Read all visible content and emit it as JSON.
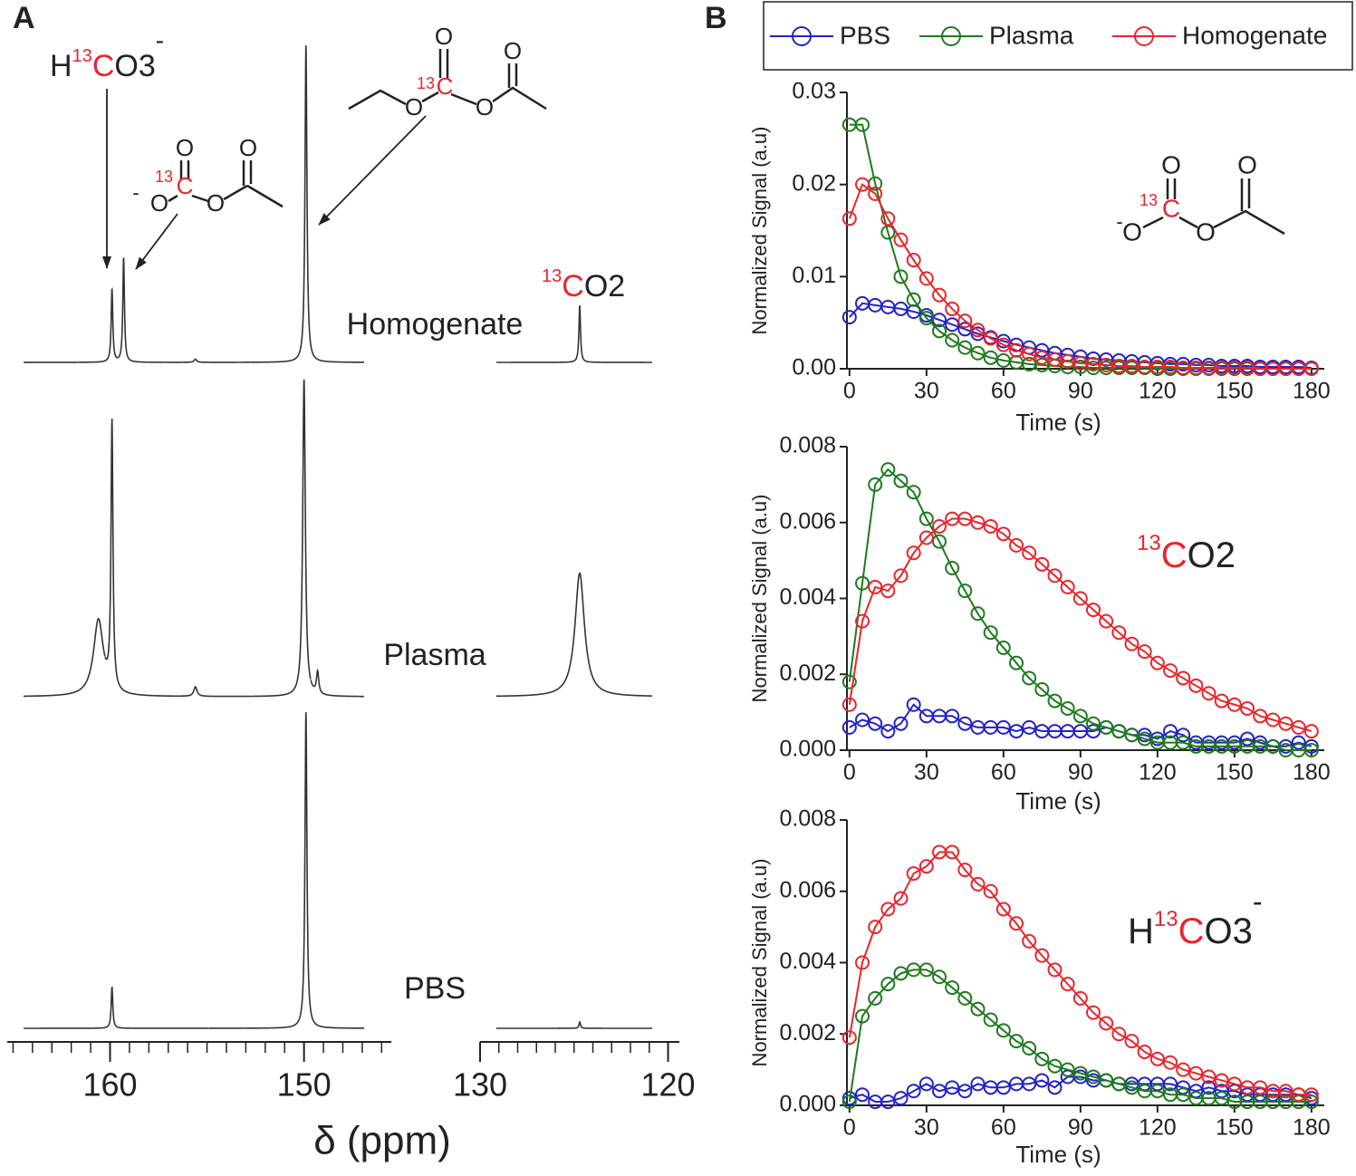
{
  "panel_labels": [
    "A",
    "B"
  ],
  "labels": {
    "bicarbonate": [
      "H",
      "13",
      "C",
      "O3",
      "-"
    ],
    "co2": [
      "13",
      "C",
      "O2"
    ],
    "acetyl_carbonate": [
      "O",
      "-",
      "O",
      "13",
      "C",
      "O",
      "O"
    ],
    "ethyl_acetyl_carbonate": [
      "O",
      "13",
      "C",
      "O",
      "O",
      "O"
    ]
  },
  "chart_data": [
    {
      "type": "spectrum",
      "xlabel": "δ (ppm)",
      "minor_tick_step": 1,
      "segments": [
        {
          "xlim": [
            165.3,
            145.5
          ],
          "xticks": [
            160,
            150
          ]
        },
        {
          "xlim": [
            130,
            119.4
          ],
          "xticks": [
            130,
            120
          ]
        }
      ],
      "spectra": [
        {
          "name": "Homogenate",
          "peaks": [
            {
              "ppm": 159.9,
              "height": 23,
              "width": 0.05
            },
            {
              "ppm": 159.3,
              "height": 33,
              "width": 0.05
            },
            {
              "ppm": 155.6,
              "height": 1,
              "width": 0.08
            },
            {
              "ppm": 149.9,
              "height": 100,
              "width": 0.06
            },
            {
              "ppm": 124.7,
              "height": 18,
              "width": 0.05
            }
          ]
        },
        {
          "name": "Plasma",
          "peaks": [
            {
              "ppm": 160.6,
              "height": 24,
              "width": 0.3
            },
            {
              "ppm": 159.9,
              "height": 84,
              "width": 0.06
            },
            {
              "ppm": 155.6,
              "height": 3,
              "width": 0.1
            },
            {
              "ppm": 150.0,
              "height": 100,
              "width": 0.08
            },
            {
              "ppm": 149.3,
              "height": 7,
              "width": 0.07
            },
            {
              "ppm": 124.7,
              "height": 39,
              "width": 0.3
            }
          ]
        },
        {
          "name": "PBS",
          "peaks": [
            {
              "ppm": 159.9,
              "height": 13,
              "width": 0.05
            },
            {
              "ppm": 149.9,
              "height": 100,
              "width": 0.06
            },
            {
              "ppm": 124.7,
              "height": 2,
              "width": 0.05
            }
          ]
        }
      ]
    },
    {
      "type": "line",
      "xlabel": "Time (s)",
      "ylabel": "Normalized Signal (a.u)",
      "xlim": [
        -1,
        185
      ],
      "xticks": [
        0,
        30,
        60,
        90,
        120,
        150,
        180
      ],
      "ylim": [
        0,
        0.03
      ],
      "yticks": [
        {
          "value": 0,
          "label": "0.00"
        },
        0.01,
        0.02,
        0.03
      ],
      "x": [
        0,
        5,
        10,
        15,
        20,
        25,
        30,
        35,
        40,
        45,
        50,
        55,
        60,
        65,
        70,
        75,
        80,
        85,
        90,
        95,
        100,
        105,
        110,
        115,
        120,
        125,
        130,
        135,
        140,
        145,
        150,
        155,
        160,
        165,
        170,
        175,
        180
      ],
      "series": [
        {
          "name": "PBS",
          "color": "#2323c8",
          "values": [
            0.0056,
            0.0071,
            0.0069,
            0.0067,
            0.0065,
            0.0062,
            0.0058,
            0.0053,
            0.0048,
            0.0043,
            0.0038,
            0.0034,
            0.003,
            0.0026,
            0.0023,
            0.002,
            0.0017,
            0.0015,
            0.0013,
            0.0011,
            0.001,
            0.0009,
            0.0008,
            0.0007,
            0.0006,
            0.0005,
            0.0005,
            0.0004,
            0.0004,
            0.0003,
            0.0003,
            0.0003,
            0.0002,
            0.0002,
            0.0002,
            0.0002,
            0.0001
          ]
        },
        {
          "name": "Plasma",
          "color": "#1e7a1e",
          "values": [
            0.0265,
            0.0265,
            0.0201,
            0.0148,
            0.01,
            0.0075,
            0.0055,
            0.0041,
            0.0031,
            0.0023,
            0.0017,
            0.0012,
            0.0009,
            0.0007,
            0.0005,
            0.0004,
            0.0003,
            0.0002,
            0.0002,
            0.0001,
            0.0001,
            0.0001,
            0.0001,
            0.0001,
            0,
            0,
            0,
            0,
            0,
            0,
            0,
            0,
            0,
            0,
            0,
            0,
            0
          ]
        },
        {
          "name": "Homogenate",
          "color": "#e8262b",
          "values": [
            0.0163,
            0.02,
            0.019,
            0.0163,
            0.014,
            0.0118,
            0.0098,
            0.008,
            0.0065,
            0.0052,
            0.0042,
            0.0033,
            0.0026,
            0.002,
            0.0016,
            0.0012,
            0.001,
            0.0008,
            0.0006,
            0.0005,
            0.0004,
            0.0003,
            0.0003,
            0.0002,
            0.0002,
            0.0002,
            0.0001,
            0.0001,
            0.0001,
            0.0001,
            0.0001,
            0.0001,
            0,
            0,
            0,
            0,
            0
          ]
        }
      ]
    },
    {
      "type": "line",
      "xlabel": "Time (s)",
      "ylabel": "Normalized Signal (a.u)",
      "xlim": [
        -1,
        185
      ],
      "xticks": [
        0,
        30,
        60,
        90,
        120,
        150,
        180
      ],
      "ylim": [
        0,
        0.008
      ],
      "yticks": [
        {
          "value": 0,
          "label": "0.000"
        },
        0.002,
        0.004,
        0.006,
        0.008
      ],
      "x": [
        0,
        5,
        10,
        15,
        20,
        25,
        30,
        35,
        40,
        45,
        50,
        55,
        60,
        65,
        70,
        75,
        80,
        85,
        90,
        95,
        100,
        105,
        110,
        115,
        120,
        125,
        130,
        135,
        140,
        145,
        150,
        155,
        160,
        165,
        170,
        175,
        180
      ],
      "series": [
        {
          "color": "#2323c8",
          "values": [
            0.0006,
            0.0008,
            0.0007,
            0.0005,
            0.0007,
            0.0012,
            0.0009,
            0.0009,
            0.0009,
            0.0007,
            0.0006,
            0.0006,
            0.0006,
            0.0005,
            0.0006,
            0.0005,
            0.0005,
            0.0005,
            0.0005,
            0.0005,
            0.0006,
            0.0005,
            0.0004,
            0.0004,
            0.0003,
            0.0005,
            0.0004,
            0.0002,
            0.0002,
            0.0002,
            0.0002,
            0.0003,
            0.0002,
            0.0001,
            0.0001,
            0.0002,
            0.0001
          ]
        },
        {
          "color": "#1e7a1e",
          "values": [
            0.0018,
            0.0044,
            0.007,
            0.0074,
            0.0071,
            0.0068,
            0.0061,
            0.0055,
            0.0048,
            0.0042,
            0.0036,
            0.0031,
            0.0027,
            0.0023,
            0.0019,
            0.0016,
            0.0013,
            0.0011,
            0.0009,
            0.0007,
            0.0006,
            0.0005,
            0.0004,
            0.0003,
            0.0002,
            0.0002,
            0.0002,
            0.0001,
            0.0001,
            0.0001,
            0.0001,
            0.0001,
            0.0001,
            0.0001,
            0,
            0,
            0
          ]
        },
        {
          "color": "#e8262b",
          "values": [
            0.0012,
            0.0034,
            0.0043,
            0.0042,
            0.0046,
            0.0052,
            0.0056,
            0.0059,
            0.0061,
            0.0061,
            0.006,
            0.0059,
            0.0057,
            0.0054,
            0.0052,
            0.0049,
            0.0046,
            0.0043,
            0.004,
            0.0037,
            0.0034,
            0.0031,
            0.0028,
            0.0026,
            0.0023,
            0.0021,
            0.0019,
            0.0017,
            0.0015,
            0.0013,
            0.0012,
            0.0011,
            0.0009,
            0.0008,
            0.0007,
            0.0006,
            0.0005
          ]
        }
      ]
    },
    {
      "type": "line",
      "xlabel": "Time (s)",
      "ylabel": "Normalized Signal (a.u)",
      "xlim": [
        -1,
        185
      ],
      "xticks": [
        0,
        30,
        60,
        90,
        120,
        150,
        180
      ],
      "ylim": [
        0,
        0.008
      ],
      "yticks": [
        {
          "value": 0,
          "label": "0.000"
        },
        0.002,
        0.004,
        0.006,
        0.008
      ],
      "x": [
        0,
        5,
        10,
        15,
        20,
        25,
        30,
        35,
        40,
        45,
        50,
        55,
        60,
        65,
        70,
        75,
        80,
        85,
        90,
        95,
        100,
        105,
        110,
        115,
        120,
        125,
        130,
        135,
        140,
        145,
        150,
        155,
        160,
        165,
        170,
        175,
        180
      ],
      "series": [
        {
          "color": "#2323c8",
          "values": [
            0.0002,
            0.0003,
            0.0001,
            0.0001,
            0.0002,
            0.0004,
            0.0006,
            0.0004,
            0.0005,
            0.0004,
            0.0006,
            0.0005,
            0.0005,
            0.0006,
            0.0006,
            0.0007,
            0.0005,
            0.0008,
            0.0008,
            0.0007,
            0.0007,
            0.0006,
            0.0006,
            0.0006,
            0.0006,
            0.0006,
            0.0005,
            0.0004,
            0.0005,
            0.0004,
            0.0004,
            0.0003,
            0.0003,
            0.0003,
            0.0003,
            0.0003,
            0.0002
          ]
        },
        {
          "color": "#1e7a1e",
          "values": [
            0.0001,
            0.0025,
            0.003,
            0.0034,
            0.0037,
            0.0038,
            0.0038,
            0.0036,
            0.0033,
            0.003,
            0.0027,
            0.0024,
            0.0021,
            0.0018,
            0.0016,
            0.0013,
            0.0011,
            0.001,
            0.0009,
            0.0008,
            0.0007,
            0.0006,
            0.0005,
            0.0004,
            0.0004,
            0.0003,
            0.0003,
            0.0002,
            0.0002,
            0.0002,
            0.0001,
            0.0001,
            0.0001,
            0.0001,
            0.0001,
            0.0001,
            0.0001
          ]
        },
        {
          "color": "#e8262b",
          "values": [
            0.0019,
            0.004,
            0.005,
            0.0055,
            0.0058,
            0.0065,
            0.0067,
            0.0071,
            0.0071,
            0.0066,
            0.0062,
            0.006,
            0.0055,
            0.0051,
            0.0046,
            0.0042,
            0.0038,
            0.0034,
            0.003,
            0.0026,
            0.0023,
            0.002,
            0.0018,
            0.0015,
            0.0013,
            0.0012,
            0.001,
            0.0009,
            0.0008,
            0.0007,
            0.0006,
            0.0005,
            0.0005,
            0.0004,
            0.0004,
            0.0003,
            0.0003
          ]
        }
      ]
    }
  ]
}
